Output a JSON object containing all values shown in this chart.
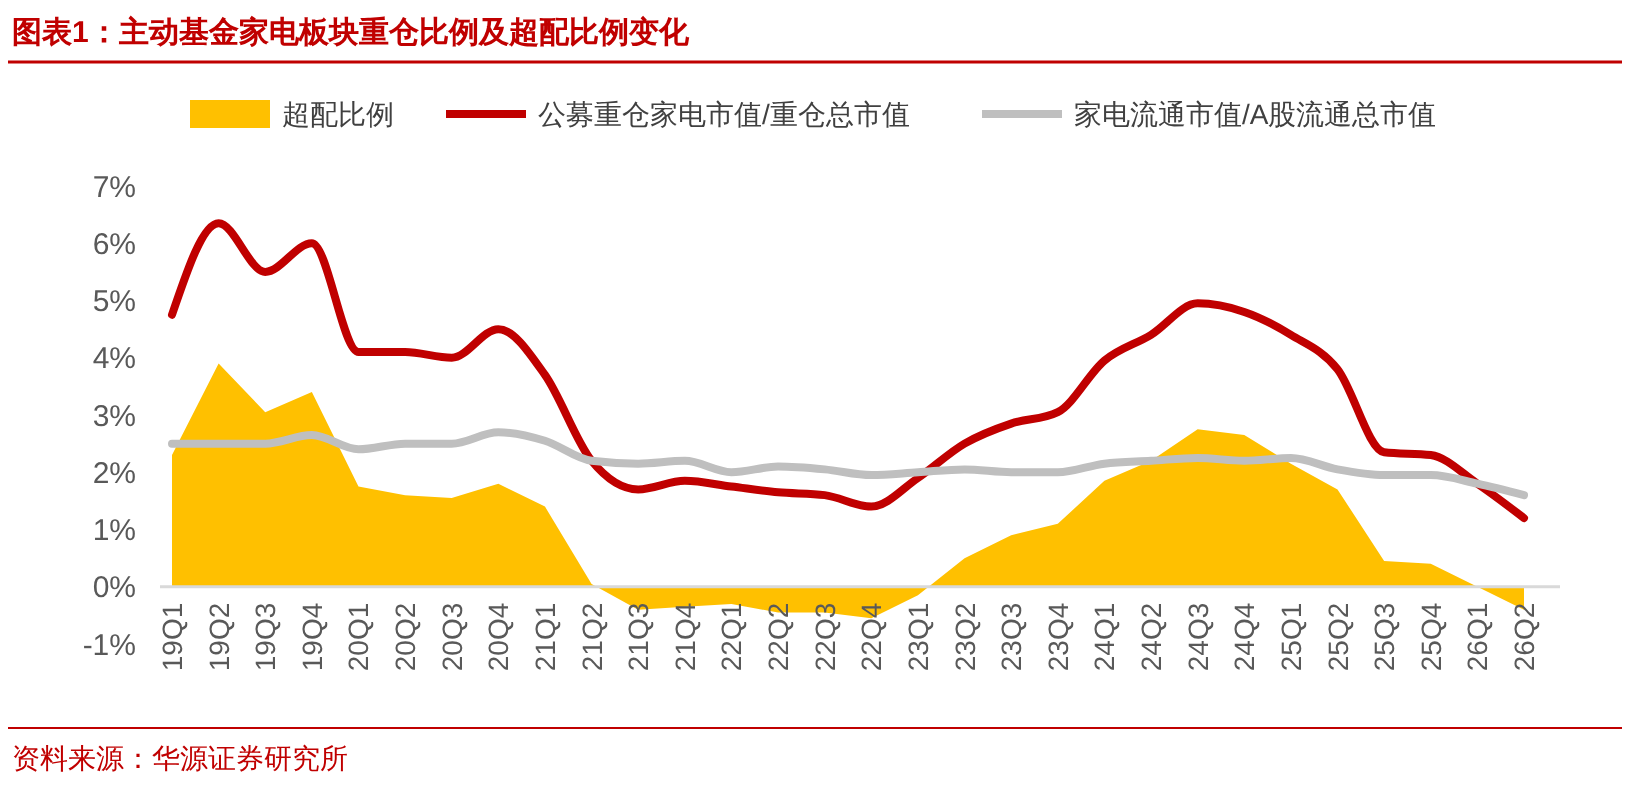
{
  "chart_data": {
    "type": "line",
    "title": "图表1：主动基金家电板块重仓比例及超配比例变化",
    "categories": [
      "19Q1",
      "19Q2",
      "19Q3",
      "19Q4",
      "20Q1",
      "20Q2",
      "20Q3",
      "20Q4",
      "21Q1",
      "21Q2",
      "21Q3",
      "21Q4",
      "22Q1",
      "22Q2",
      "22Q3",
      "22Q4",
      "23Q1",
      "23Q2",
      "23Q3",
      "23Q4",
      "24Q1",
      "24Q2",
      "24Q3",
      "24Q4",
      "25Q1",
      "25Q2",
      "25Q3",
      "25Q4",
      "26Q1",
      "26Q2"
    ],
    "series": [
      {
        "name": "超配比例",
        "type": "area",
        "color": "#ffc000",
        "values": [
          2.3,
          3.9,
          3.05,
          3.4,
          1.75,
          1.6,
          1.55,
          1.8,
          1.4,
          0.05,
          -0.4,
          -0.35,
          -0.3,
          -0.45,
          -0.45,
          -0.55,
          -0.15,
          0.5,
          0.9,
          1.1,
          1.85,
          2.2,
          2.75,
          2.65,
          2.15,
          1.7,
          0.45,
          0.4,
          0.0,
          -0.4
        ]
      },
      {
        "name": "公募重仓家电市值/重仓总市值",
        "color": "#c00000",
        "values": [
          4.75,
          6.35,
          5.5,
          6.0,
          4.1,
          4.1,
          4.0,
          4.5,
          3.7,
          2.2,
          1.7,
          1.85,
          1.75,
          1.65,
          1.6,
          1.4,
          1.9,
          2.5,
          2.85,
          3.05,
          3.95,
          4.4,
          4.95,
          4.8,
          4.4,
          3.8,
          2.35,
          2.3,
          1.8,
          1.2
        ]
      },
      {
        "name": "家电流通市值/A股流通总市值",
        "color": "#bfbfbf",
        "values": [
          2.5,
          2.5,
          2.5,
          2.65,
          2.4,
          2.5,
          2.5,
          2.7,
          2.55,
          2.2,
          2.15,
          2.2,
          2.0,
          2.1,
          2.05,
          1.95,
          2.0,
          2.05,
          2.0,
          2.0,
          2.15,
          2.2,
          2.25,
          2.2,
          2.25,
          2.05,
          1.95,
          1.95,
          1.8,
          1.6
        ]
      }
    ],
    "ylim": [
      -1,
      7
    ],
    "yticks": [
      {
        "value": -1,
        "label": "-1%"
      },
      {
        "value": 0,
        "label": "0%"
      },
      {
        "value": 1,
        "label": "1%"
      },
      {
        "value": 2,
        "label": "2%"
      },
      {
        "value": 3,
        "label": "3%"
      },
      {
        "value": 4,
        "label": "4%"
      },
      {
        "value": 5,
        "label": "5%"
      },
      {
        "value": 6,
        "label": "6%"
      },
      {
        "value": 7,
        "label": "7%"
      }
    ],
    "grid": false,
    "legend": "top",
    "marker": "none",
    "line_style": "solid",
    "annotations": [
      "资料来源：华源证券研究所"
    ]
  }
}
